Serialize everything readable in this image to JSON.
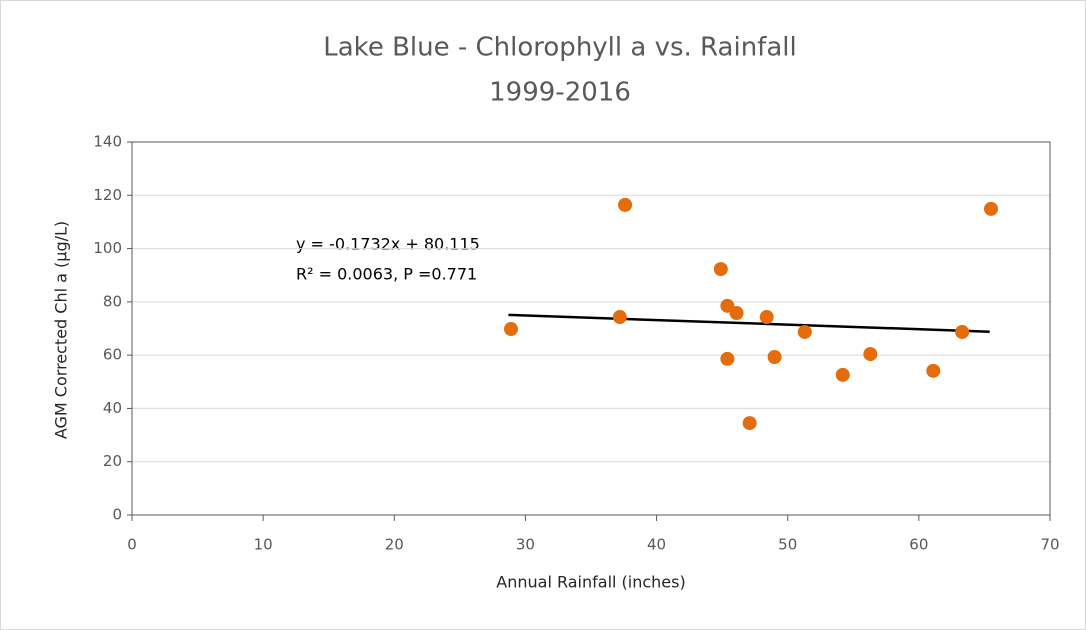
{
  "chart_data": {
    "type": "scatter",
    "title": "Lake Blue - Chlorophyll a vs. Rainfall",
    "subtitle": "1999-2016",
    "x_label": "Annual Rainfall (inches)",
    "y_label": "AGM Corrected Chl a (µg/L)",
    "annotations": [
      "y = -0.1732x + 80.115",
      "R² = 0.0063, P =0.771"
    ],
    "x": [
      28.9,
      37.2,
      37.6,
      44.9,
      45.4,
      46.1,
      45.4,
      47.1,
      48.4,
      49.0,
      51.3,
      54.2,
      56.3,
      61.1,
      63.3,
      65.5
    ],
    "values": [
      69.8,
      74.3,
      116.4,
      92.3,
      78.5,
      75.8,
      58.6,
      34.5,
      74.3,
      59.3,
      68.7,
      52.6,
      60.4,
      54.1,
      68.7,
      114.9
    ],
    "color": "#e46c0a",
    "trendline": {
      "x": [
        28.7,
        65.4
      ],
      "values": [
        75.1,
        68.8
      ],
      "color": "#000000"
    },
    "xlim": [
      0,
      70
    ],
    "xticks": [
      0,
      10,
      20,
      30,
      40,
      50,
      60,
      70
    ],
    "ylim": [
      0,
      140
    ],
    "yticks": [
      0,
      20,
      40,
      60,
      80,
      100,
      120,
      140
    ],
    "grid": true
  }
}
